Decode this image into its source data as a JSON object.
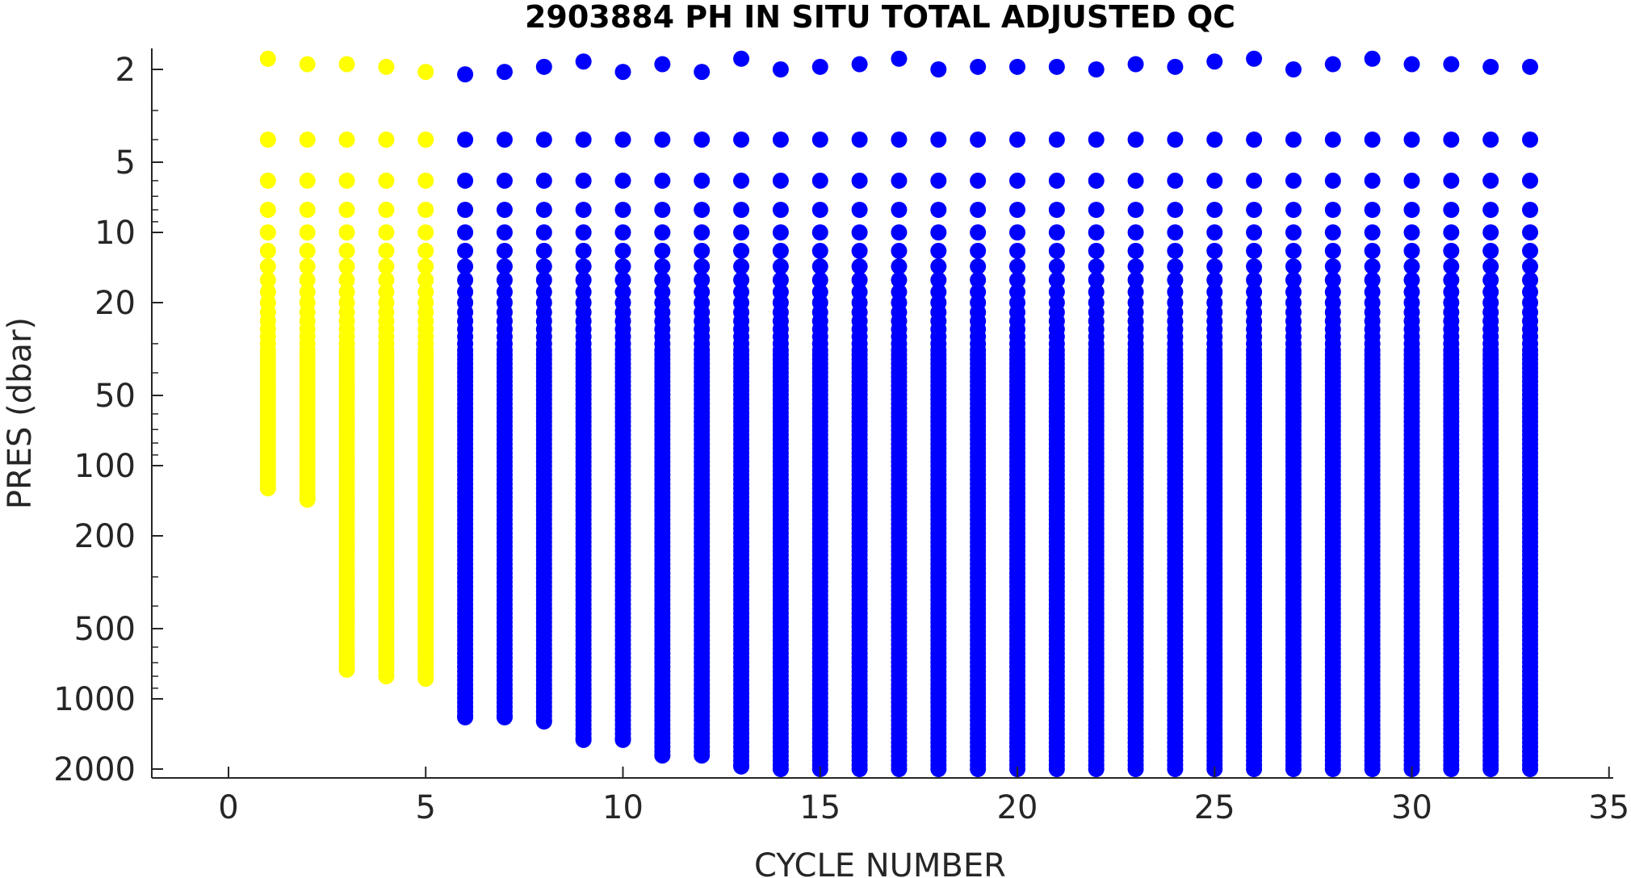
{
  "chart_data": {
    "type": "scatter",
    "title": "2903884  PH IN SITU TOTAL ADJUSTED QC",
    "xlabel": "CYCLE NUMBER",
    "ylabel": "PRES (dbar)",
    "xlim": [
      -2,
      35
    ],
    "ylim": [
      1.6,
      2100
    ],
    "y_scale": "log",
    "y_reversed": true,
    "grid": false,
    "legend": "none",
    "x_ticks": [
      "0",
      "5",
      "10",
      "15",
      "20",
      "25",
      "30",
      "35"
    ],
    "x_tick_values": [
      0,
      5,
      10,
      15,
      20,
      25,
      30,
      35
    ],
    "y_ticks": [
      "2",
      "5",
      "10",
      "20",
      "50",
      "100",
      "200",
      "500",
      "1000",
      "2000"
    ],
    "y_tick_values": [
      2,
      5,
      10,
      20,
      50,
      100,
      200,
      500,
      1000,
      2000
    ],
    "colors": {
      "qc_yellow": "#ffff00",
      "qc_blue": "#0000ff",
      "axis": "#262626"
    },
    "series": [
      {
        "color": "#ffff00",
        "cycles": [
          1,
          2,
          3,
          4,
          5
        ],
        "surface_pres": [
          1.8,
          1.9,
          1.9,
          1.95,
          2.05
        ],
        "max_pres": [
          125,
          140,
          750,
          800,
          820
        ]
      },
      {
        "color": "#0000ff",
        "cycles": [
          6,
          7,
          8,
          9,
          10,
          11,
          12,
          13,
          14,
          15,
          16,
          17,
          18,
          19,
          20,
          21,
          22,
          23,
          24,
          25,
          26,
          27,
          28,
          29,
          30,
          31,
          32,
          33
        ],
        "surface_pres": [
          2.1,
          2.05,
          1.95,
          1.85,
          2.05,
          1.9,
          2.05,
          1.8,
          2.0,
          1.95,
          1.9,
          1.8,
          2.0,
          1.95,
          1.95,
          1.95,
          2.0,
          1.9,
          1.95,
          1.85,
          1.8,
          2.0,
          1.9,
          1.8,
          1.9,
          1.9,
          1.95,
          1.95
        ],
        "max_pres": [
          1200,
          1200,
          1250,
          1500,
          1500,
          1750,
          1750,
          1950,
          2000,
          2000,
          2000,
          2000,
          2000,
          2000,
          2000,
          2000,
          2000,
          2000,
          2000,
          2000,
          2000,
          2000,
          2000,
          2000,
          2000,
          2000,
          2000,
          2000
        ]
      }
    ]
  }
}
